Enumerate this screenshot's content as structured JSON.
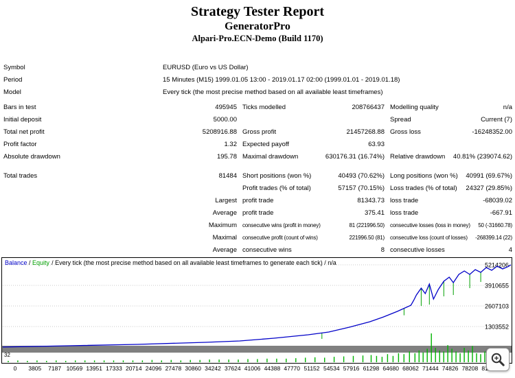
{
  "header": {
    "title": "Strategy Tester Report",
    "subtitle": "GeneratorPro",
    "server": "Alpari-Pro.ECN-Demo (Build 1170)"
  },
  "info_rows": [
    {
      "label": "Symbol",
      "value": "EURUSD (Euro vs US Dollar)"
    },
    {
      "label": "Period",
      "value": "15 Minutes (M15) 1999.01.05 13:00 - 2019.01.17 02:00 (1999.01.01 - 2019.01.18)"
    },
    {
      "label": "Model",
      "value": "Every tick (the most precise method based on all available least timeframes)"
    }
  ],
  "stat_rows": [
    {
      "c1": "Bars in test",
      "c2": "495945",
      "c3": "Ticks modelled",
      "c4": "208766437",
      "c5": "Modelling quality",
      "c6": "n/a"
    },
    {
      "c1": "Initial deposit",
      "c2": "5000.00",
      "c3": "",
      "c4": "",
      "c5": "Spread",
      "c6": "Current (7)"
    },
    {
      "c1": "Total net profit",
      "c2": "5208916.88",
      "c3": "Gross profit",
      "c4": "21457268.88",
      "c5": "Gross loss",
      "c6": "-16248352.00"
    },
    {
      "c1": "Profit factor",
      "c2": "1.32",
      "c3": "Expected payoff",
      "c4": "63.93",
      "c5": "",
      "c6": ""
    },
    {
      "c1": "Absolute drawdown",
      "c2": "195.78",
      "c3": "Maximal drawdown",
      "c4": "630176.31 (16.74%)",
      "c5": "Relative drawdown",
      "c6": "40.81% (239074.62)"
    },
    {
      "c1": "Total trades",
      "c2": "81484",
      "c3": "Short positions (won %)",
      "c4": "40493 (70.62%)",
      "c5": "Long positions (won %)",
      "c6": "40991 (69.67%)",
      "gap_before": true
    },
    {
      "c1": "",
      "c2": "",
      "c3": "Profit trades (% of total)",
      "c4": "57157 (70.15%)",
      "c5": "Loss trades (% of total)",
      "c6": "24327 (29.85%)"
    },
    {
      "c1": "",
      "c2": "Largest",
      "c3": "profit trade",
      "c4": "81343.73",
      "c5": "loss trade",
      "c6": "-68039.02"
    },
    {
      "c1": "",
      "c2": "Average",
      "c3": "profit trade",
      "c4": "375.41",
      "c5": "loss trade",
      "c6": "-667.91"
    },
    {
      "c1": "",
      "c2": "Maximum",
      "c3": "consecutive wins (profit in money)",
      "c4": "81 (221996.50)",
      "c5": "consecutive losses (loss in money)",
      "c6": "50 (-31660.78)",
      "compact": true
    },
    {
      "c1": "",
      "c2": "Maximal",
      "c3": "consecutive profit (count of wins)",
      "c4": "221996.50 (81)",
      "c5": "consecutive loss (count of losses)",
      "c6": "-268399.14 (22)",
      "compact": true
    },
    {
      "c1": "",
      "c2": "Average",
      "c3": "consecutive wins",
      "c4": "8",
      "c5": "consecutive losses",
      "c6": "4"
    }
  ],
  "chart_data": {
    "type": "line",
    "legend": [
      "Balance",
      "Equity"
    ],
    "legend_separator": " / ",
    "legend_note": "/ Every tick (the most precise method based on all available least timeframes to generate each tick) / n/a",
    "x_range": [
      0,
      81590
    ],
    "y_range": [
      0,
      5214206
    ],
    "y_ticks": [
      5214206,
      3910655,
      2607103,
      1303552
    ],
    "x_ticks": [
      0,
      3805,
      7187,
      10569,
      13951,
      17333,
      20714,
      24096,
      27478,
      30860,
      34242,
      37624,
      41006,
      44388,
      47770,
      51152,
      54534,
      57916,
      61298,
      64680,
      68062,
      71444,
      74826,
      78208,
      81590
    ],
    "lots_scale_label": "32",
    "lots_scale_max": 32,
    "colors": {
      "balance": "#0000c8",
      "equity": "#00a000",
      "lots": "#00b400",
      "grid": "#c8c8c8",
      "band": "#808080"
    },
    "balance_series": [
      [
        0,
        5000
      ],
      [
        10556,
        87000
      ],
      [
        21552,
        174000
      ],
      [
        32548,
        304000
      ],
      [
        38046,
        391000
      ],
      [
        43544,
        565000
      ],
      [
        49042,
        782000
      ],
      [
        52341,
        956000
      ],
      [
        55640,
        1260000
      ],
      [
        58938,
        1608000
      ],
      [
        61137,
        1912000
      ],
      [
        63336,
        2259000
      ],
      [
        65536,
        2651000
      ],
      [
        65975,
        2954000
      ],
      [
        66415,
        3302000
      ],
      [
        67185,
        3737000
      ],
      [
        67845,
        3389000
      ],
      [
        68504,
        3998000
      ],
      [
        69164,
        3042000
      ],
      [
        69934,
        3650000
      ],
      [
        70813,
        4171000
      ],
      [
        71693,
        4432000
      ],
      [
        72353,
        4084000
      ],
      [
        73232,
        4606000
      ],
      [
        74112,
        4823000
      ],
      [
        74991,
        4606000
      ],
      [
        75871,
        4910000
      ],
      [
        76750,
        4736000
      ],
      [
        77630,
        5040000
      ],
      [
        78509,
        4867000
      ],
      [
        79389,
        5127000
      ],
      [
        80268,
        4953000
      ],
      [
        81148,
        5100000
      ],
      [
        81590,
        5208917
      ]
    ],
    "equity_spikes": [
      [
        51242,
        870000,
        520000
      ],
      [
        64436,
        2450000,
        2015000
      ],
      [
        67185,
        3737000,
        2607000
      ],
      [
        68504,
        3998000,
        2694000
      ],
      [
        70813,
        4171000,
        3215000
      ],
      [
        72353,
        4084000,
        3302000
      ],
      [
        74991,
        4606000,
        3737000
      ],
      [
        76750,
        4736000,
        4128000
      ]
    ],
    "lots_series": [
      [
        880,
        1.5
      ],
      [
        2419,
        2
      ],
      [
        3958,
        1.5
      ],
      [
        5497,
        2
      ],
      [
        7036,
        1.5
      ],
      [
        8576,
        2
      ],
      [
        10115,
        1.5
      ],
      [
        11654,
        2
      ],
      [
        13193,
        2
      ],
      [
        14732,
        2
      ],
      [
        16272,
        2
      ],
      [
        17811,
        2
      ],
      [
        19350,
        2
      ],
      [
        20889,
        2
      ],
      [
        22429,
        2
      ],
      [
        23968,
        2.5
      ],
      [
        25507,
        2
      ],
      [
        27046,
        2.5
      ],
      [
        28585,
        2
      ],
      [
        30125,
        2.5
      ],
      [
        31664,
        2.5
      ],
      [
        33203,
        3
      ],
      [
        34742,
        3
      ],
      [
        36281,
        3
      ],
      [
        37821,
        3
      ],
      [
        39360,
        3.5
      ],
      [
        40899,
        3.5
      ],
      [
        42438,
        4
      ],
      [
        43978,
        4
      ],
      [
        45517,
        4
      ],
      [
        47056,
        4.5
      ],
      [
        48595,
        5
      ],
      [
        50134,
        5.5
      ],
      [
        51674,
        5
      ],
      [
        53213,
        6
      ],
      [
        54752,
        6.5
      ],
      [
        56291,
        7
      ],
      [
        57830,
        7.5
      ],
      [
        59150,
        8
      ],
      [
        60029,
        7
      ],
      [
        60909,
        6
      ],
      [
        61788,
        9
      ],
      [
        62668,
        7
      ],
      [
        63547,
        10
      ],
      [
        64426,
        9
      ],
      [
        65306,
        12
      ],
      [
        66185,
        10
      ],
      [
        66845,
        13
      ],
      [
        67504,
        11
      ],
      [
        68164,
        15
      ],
      [
        68824,
        32
      ],
      [
        69483,
        16
      ],
      [
        70143,
        13
      ],
      [
        70802,
        12
      ],
      [
        71462,
        19
      ],
      [
        72121,
        15
      ],
      [
        72781,
        12
      ],
      [
        73441,
        10
      ],
      [
        74100,
        16
      ],
      [
        74760,
        13
      ],
      [
        75419,
        18
      ],
      [
        76079,
        10
      ],
      [
        76739,
        9
      ],
      [
        77398,
        12
      ],
      [
        78058,
        7
      ],
      [
        78717,
        9
      ],
      [
        79377,
        6
      ],
      [
        80036,
        7
      ],
      [
        80696,
        5
      ]
    ]
  }
}
